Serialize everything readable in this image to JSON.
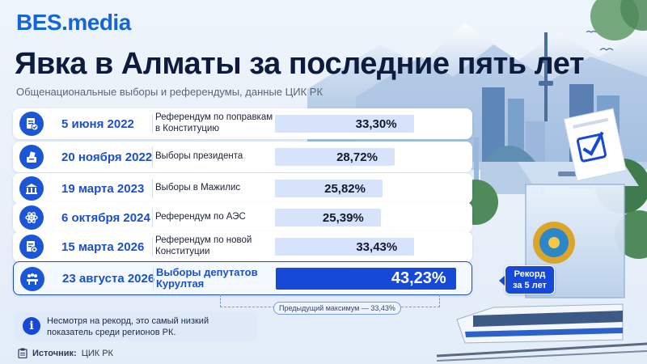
{
  "brand": {
    "logo": "BES.media"
  },
  "header": {
    "title": "Явка в Алматы за последние пять лет",
    "subtitle": "Общенациональные выборы и референдумы, данные ЦИК РК"
  },
  "chart_data": {
    "type": "bar",
    "orientation": "horizontal",
    "categories": [
      "5 июня 2022",
      "20 ноября 2022",
      "19 марта 2023",
      "6 октября 2024",
      "15 марта 2026",
      "23 августа 2026"
    ],
    "events": [
      "Референдум по поправкам в Конституцию",
      "Выборы президента",
      "Выборы в Мажилис",
      "Референдум по АЭС",
      "Референдум по новой Конституции",
      "Выборы депутатов Курултая"
    ],
    "values": [
      33.3,
      28.72,
      25.82,
      25.39,
      33.43,
      43.23
    ],
    "value_labels": [
      "33,30%",
      "28,72%",
      "25,82%",
      "25,39%",
      "33,43%",
      "43,23%"
    ],
    "icons": [
      "document-check-icon",
      "ballot-hand-icon",
      "parliament-building-icon",
      "atom-icon",
      "document-seal-icon",
      "assembly-people-icon"
    ],
    "highlight_index": 5,
    "xlim": [
      0,
      45
    ],
    "colors": {
      "bar": "#d6e3fb",
      "highlight": "#1549d6",
      "accent": "#1a4fd0"
    }
  },
  "annotations": {
    "record_line1": "Рекорд",
    "record_line2": "за 5 лет",
    "previous_max": "Предыдущий максимум — 33,43%"
  },
  "note": {
    "text": "Несмотря на рекорд, это самый низкий показатель среди регионов РК."
  },
  "source": {
    "label": "Источник:",
    "value": "ЦИК РК"
  }
}
